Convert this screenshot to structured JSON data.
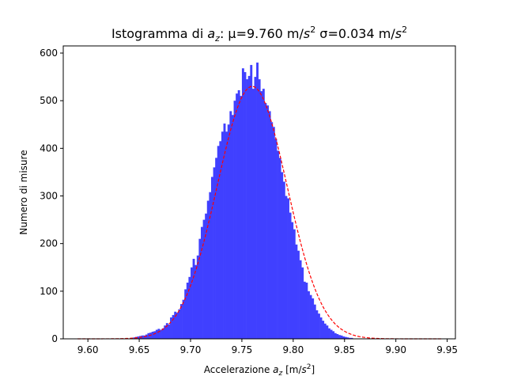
{
  "chart_data": {
    "type": "bar",
    "title": {
      "prefix": "Istogramma di ",
      "var_base": "a",
      "var_sub": "z",
      "mu_part": ": μ=9.760 m/",
      "s1": "s",
      "exp1": "2",
      "sigma_part": " σ=0.034 m/",
      "s2": "s",
      "exp2": "2"
    },
    "xlabel": {
      "prefix": "Accelerazione ",
      "var_base": "a",
      "var_sub": "z",
      "unit_open": " [m/",
      "s": "s",
      "exp": "2",
      "unit_close": "]"
    },
    "ylabel": "Numero di misure",
    "xlim": [
      9.576,
      9.958
    ],
    "ylim": [
      0,
      615
    ],
    "x_ticks": [
      "9.60",
      "9.65",
      "9.70",
      "9.75",
      "9.80",
      "9.85",
      "9.90",
      "9.95"
    ],
    "y_ticks": [
      "0",
      "100",
      "200",
      "300",
      "400",
      "500",
      "600"
    ],
    "histogram": {
      "color": "#4040ff",
      "bin_width": 0.002,
      "bins": [
        {
          "x": 9.645,
          "y": 3
        },
        {
          "x": 9.647,
          "y": 4
        },
        {
          "x": 9.649,
          "y": 5
        },
        {
          "x": 9.651,
          "y": 6
        },
        {
          "x": 9.653,
          "y": 7
        },
        {
          "x": 9.655,
          "y": 7
        },
        {
          "x": 9.657,
          "y": 9
        },
        {
          "x": 9.659,
          "y": 12
        },
        {
          "x": 9.661,
          "y": 13
        },
        {
          "x": 9.663,
          "y": 15
        },
        {
          "x": 9.665,
          "y": 16
        },
        {
          "x": 9.667,
          "y": 19
        },
        {
          "x": 9.669,
          "y": 21
        },
        {
          "x": 9.671,
          "y": 19
        },
        {
          "x": 9.673,
          "y": 22
        },
        {
          "x": 9.675,
          "y": 28
        },
        {
          "x": 9.677,
          "y": 33
        },
        {
          "x": 9.679,
          "y": 30
        },
        {
          "x": 9.681,
          "y": 45
        },
        {
          "x": 9.683,
          "y": 50
        },
        {
          "x": 9.685,
          "y": 57
        },
        {
          "x": 9.687,
          "y": 55
        },
        {
          "x": 9.689,
          "y": 62
        },
        {
          "x": 9.691,
          "y": 73
        },
        {
          "x": 9.693,
          "y": 82
        },
        {
          "x": 9.695,
          "y": 104
        },
        {
          "x": 9.697,
          "y": 118
        },
        {
          "x": 9.699,
          "y": 130
        },
        {
          "x": 9.701,
          "y": 150
        },
        {
          "x": 9.703,
          "y": 168
        },
        {
          "x": 9.705,
          "y": 155
        },
        {
          "x": 9.707,
          "y": 175
        },
        {
          "x": 9.709,
          "y": 210
        },
        {
          "x": 9.711,
          "y": 235
        },
        {
          "x": 9.713,
          "y": 250
        },
        {
          "x": 9.715,
          "y": 263
        },
        {
          "x": 9.717,
          "y": 290
        },
        {
          "x": 9.719,
          "y": 308
        },
        {
          "x": 9.721,
          "y": 340
        },
        {
          "x": 9.723,
          "y": 360
        },
        {
          "x": 9.725,
          "y": 380
        },
        {
          "x": 9.727,
          "y": 405
        },
        {
          "x": 9.729,
          "y": 415
        },
        {
          "x": 9.731,
          "y": 435
        },
        {
          "x": 9.733,
          "y": 452
        },
        {
          "x": 9.735,
          "y": 435
        },
        {
          "x": 9.737,
          "y": 450
        },
        {
          "x": 9.739,
          "y": 478
        },
        {
          "x": 9.741,
          "y": 470
        },
        {
          "x": 9.743,
          "y": 500
        },
        {
          "x": 9.745,
          "y": 515
        },
        {
          "x": 9.747,
          "y": 522
        },
        {
          "x": 9.749,
          "y": 510
        },
        {
          "x": 9.751,
          "y": 568
        },
        {
          "x": 9.753,
          "y": 560
        },
        {
          "x": 9.755,
          "y": 545
        },
        {
          "x": 9.757,
          "y": 552
        },
        {
          "x": 9.759,
          "y": 575
        },
        {
          "x": 9.761,
          "y": 525
        },
        {
          "x": 9.763,
          "y": 550
        },
        {
          "x": 9.765,
          "y": 580
        },
        {
          "x": 9.767,
          "y": 545
        },
        {
          "x": 9.769,
          "y": 520
        },
        {
          "x": 9.771,
          "y": 525
        },
        {
          "x": 9.773,
          "y": 495
        },
        {
          "x": 9.775,
          "y": 490
        },
        {
          "x": 9.777,
          "y": 478
        },
        {
          "x": 9.779,
          "y": 455
        },
        {
          "x": 9.781,
          "y": 445
        },
        {
          "x": 9.783,
          "y": 420
        },
        {
          "x": 9.785,
          "y": 395
        },
        {
          "x": 9.787,
          "y": 380
        },
        {
          "x": 9.789,
          "y": 350
        },
        {
          "x": 9.791,
          "y": 330
        },
        {
          "x": 9.793,
          "y": 300
        },
        {
          "x": 9.795,
          "y": 295
        },
        {
          "x": 9.797,
          "y": 265
        },
        {
          "x": 9.799,
          "y": 245
        },
        {
          "x": 9.801,
          "y": 230
        },
        {
          "x": 9.803,
          "y": 198
        },
        {
          "x": 9.805,
          "y": 185
        },
        {
          "x": 9.807,
          "y": 165
        },
        {
          "x": 9.809,
          "y": 150
        },
        {
          "x": 9.811,
          "y": 120
        },
        {
          "x": 9.813,
          "y": 118
        },
        {
          "x": 9.815,
          "y": 100
        },
        {
          "x": 9.817,
          "y": 92
        },
        {
          "x": 9.819,
          "y": 85
        },
        {
          "x": 9.821,
          "y": 72
        },
        {
          "x": 9.823,
          "y": 60
        },
        {
          "x": 9.825,
          "y": 53
        },
        {
          "x": 9.827,
          "y": 45
        },
        {
          "x": 9.829,
          "y": 38
        },
        {
          "x": 9.831,
          "y": 32
        },
        {
          "x": 9.833,
          "y": 28
        },
        {
          "x": 9.835,
          "y": 22
        },
        {
          "x": 9.837,
          "y": 19
        },
        {
          "x": 9.839,
          "y": 16
        },
        {
          "x": 9.841,
          "y": 12
        },
        {
          "x": 9.843,
          "y": 10
        },
        {
          "x": 9.845,
          "y": 8
        },
        {
          "x": 9.847,
          "y": 7
        },
        {
          "x": 9.849,
          "y": 5
        },
        {
          "x": 9.851,
          "y": 4
        },
        {
          "x": 9.853,
          "y": 3
        },
        {
          "x": 9.855,
          "y": 2
        },
        {
          "x": 9.857,
          "y": 2
        }
      ]
    },
    "fit": {
      "type": "gaussian",
      "mu": 9.76,
      "sigma": 0.034,
      "peak": 530,
      "x_range": [
        9.59,
        9.945
      ],
      "color": "#ff0000",
      "style": "dashed"
    },
    "grid": false,
    "legend": false
  }
}
